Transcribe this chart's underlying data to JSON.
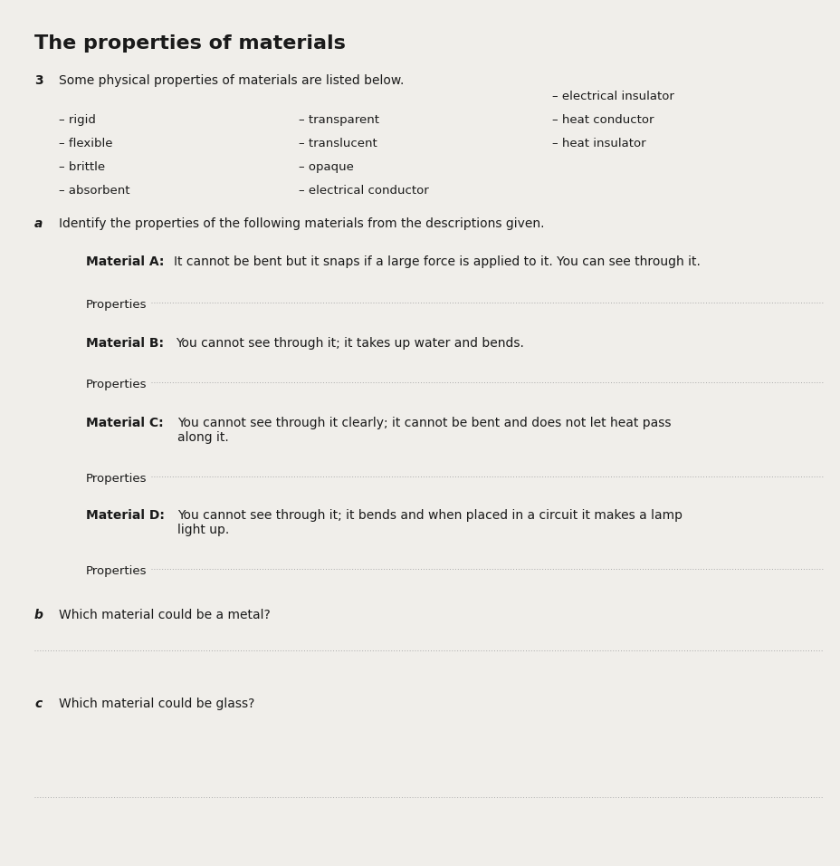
{
  "bg_color": "#f0eeea",
  "text_color": "#1a1a1a",
  "title": "The properties of materials",
  "title_fontsize": 16,
  "question_number": "3",
  "intro_text": "Some physical properties of materials are listed below.",
  "intro_fontsize": 10,
  "properties_col1": [
    "rigid",
    "flexible",
    "brittle",
    "absorbent"
  ],
  "properties_col2": [
    "transparent",
    "translucent",
    "opaque",
    "electrical conductor"
  ],
  "properties_col3": [
    "electrical insulator",
    "heat conductor",
    "heat insulator"
  ],
  "prop_fontsize": 9.5,
  "part_a_label": "a",
  "part_a_text": "Identify the properties of the following materials from the descriptions given.",
  "material_a_label": "Material A:",
  "material_a_text": "It cannot be bent but it snaps if a large force is applied to it. You can see through it.",
  "material_b_label": "Material B:",
  "material_b_text": "You cannot see through it; it takes up water and bends.",
  "material_c_label": "Material C:",
  "material_c_text": "You cannot see through it clearly; it cannot be bent and does not let heat pass\nalong it.",
  "material_d_label": "Material D:",
  "material_d_text": "You cannot see through it; it bends and when placed in a circuit it makes a lamp\nlight up.",
  "properties_label": "Properties",
  "part_b_label": "b",
  "part_b_text": "Which material could be a metal?",
  "part_c_label": "c",
  "part_c_text": "Which material could be glass?",
  "body_fontsize": 10,
  "label_bold_fontsize": 10
}
